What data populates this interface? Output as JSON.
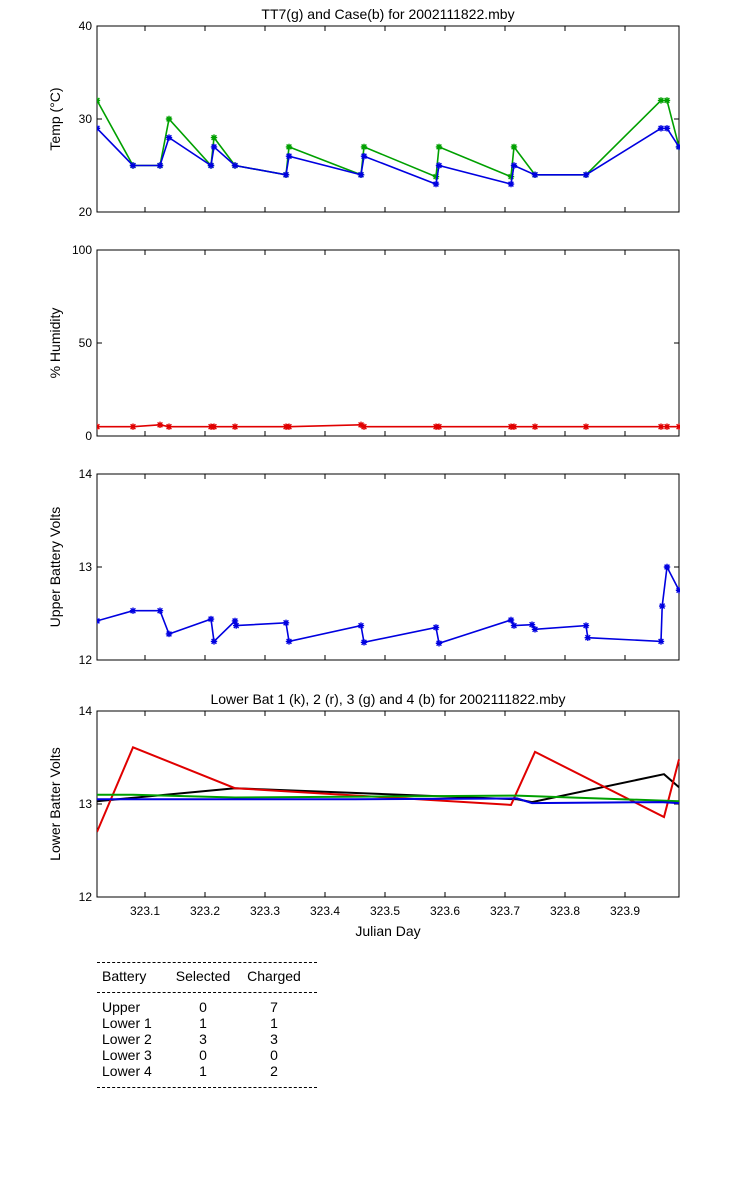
{
  "chart_data": [
    {
      "type": "line",
      "title": "TT7(g) and Case(b) for 2002111822.mby",
      "xlabel": "",
      "ylabel": "Temp  (°C)",
      "xlim": [
        323.02,
        323.99
      ],
      "ylim": [
        20,
        40
      ],
      "yticks": [
        20,
        30,
        40
      ],
      "grid": false,
      "series": [
        {
          "color": "#00a000",
          "x": [
            323.02,
            323.08,
            323.125,
            323.14,
            323.21,
            323.215,
            323.25,
            323.335,
            323.34,
            323.46,
            323.465,
            323.585,
            323.59,
            323.71,
            323.715,
            323.75,
            323.835,
            323.96,
            323.97,
            323.99
          ],
          "y": [
            32,
            25,
            25,
            30,
            25,
            28,
            25,
            24,
            27,
            24,
            27,
            23.8,
            27,
            23.8,
            27,
            24,
            24,
            32,
            32,
            27
          ]
        },
        {
          "color": "#0000e0",
          "x": [
            323.02,
            323.08,
            323.125,
            323.14,
            323.21,
            323.215,
            323.25,
            323.335,
            323.34,
            323.46,
            323.465,
            323.585,
            323.59,
            323.71,
            323.715,
            323.75,
            323.835,
            323.96,
            323.97,
            323.99
          ],
          "y": [
            29,
            25,
            25,
            28,
            25,
            27,
            25,
            24,
            26,
            24,
            26,
            23,
            25,
            23,
            25,
            24,
            24,
            29,
            29,
            27
          ]
        }
      ]
    },
    {
      "type": "line",
      "title": "",
      "xlabel": "",
      "ylabel": "% Humidity",
      "xlim": [
        323.02,
        323.99
      ],
      "ylim": [
        0,
        100
      ],
      "yticks": [
        0,
        50,
        100
      ],
      "grid": false,
      "series": [
        {
          "color": "#e00000",
          "x": [
            323.02,
            323.08,
            323.125,
            323.14,
            323.21,
            323.215,
            323.25,
            323.335,
            323.34,
            323.46,
            323.465,
            323.585,
            323.59,
            323.71,
            323.715,
            323.75,
            323.835,
            323.96,
            323.97,
            323.99
          ],
          "y": [
            5,
            5,
            6,
            5,
            5,
            5,
            5,
            5,
            5,
            6,
            5,
            5,
            5,
            5,
            5,
            5,
            5,
            5,
            5,
            5
          ]
        }
      ]
    },
    {
      "type": "line",
      "title": "",
      "xlabel": "",
      "ylabel": "Upper Battery Volts",
      "xlim": [
        323.02,
        323.99
      ],
      "ylim": [
        12,
        14
      ],
      "yticks": [
        12,
        13,
        14
      ],
      "grid": false,
      "series": [
        {
          "color": "#0000e0",
          "x": [
            323.02,
            323.08,
            323.125,
            323.14,
            323.21,
            323.215,
            323.25,
            323.252,
            323.335,
            323.34,
            323.46,
            323.465,
            323.585,
            323.59,
            323.71,
            323.715,
            323.745,
            323.75,
            323.835,
            323.838,
            323.96,
            323.962,
            323.97,
            323.99
          ],
          "y": [
            12.42,
            12.53,
            12.53,
            12.28,
            12.44,
            12.2,
            12.42,
            12.37,
            12.4,
            12.2,
            12.37,
            12.19,
            12.35,
            12.18,
            12.43,
            12.37,
            12.38,
            12.33,
            12.37,
            12.24,
            12.2,
            12.58,
            13.0,
            12.75
          ]
        }
      ]
    },
    {
      "type": "line",
      "title": "Lower Bat 1 (k), 2 (r), 3 (g) and 4 (b) for 2002111822.mby",
      "xlabel": "Julian Day",
      "ylabel": "Lower Batter Volts",
      "xlim": [
        323.02,
        323.99
      ],
      "ylim": [
        12,
        14
      ],
      "yticks": [
        12,
        13,
        14
      ],
      "xticks": [
        323.1,
        323.2,
        323.3,
        323.4,
        323.5,
        323.6,
        323.7,
        323.8,
        323.9
      ],
      "xticklabels": [
        "323.1",
        "323.2",
        "323.3",
        "323.4",
        "323.5",
        "323.6",
        "323.7",
        "323.8",
        "323.9"
      ],
      "grid": false,
      "series": [
        {
          "color": "#000000",
          "x": [
            323.02,
            323.25,
            323.72,
            323.745,
            323.965,
            323.99
          ],
          "y": [
            13.03,
            13.17,
            13.05,
            13.02,
            13.32,
            13.18
          ]
        },
        {
          "color": "#e00000",
          "x": [
            323.02,
            323.08,
            323.25,
            323.71,
            323.75,
            323.965,
            323.99
          ],
          "y": [
            12.7,
            13.61,
            13.17,
            12.99,
            13.56,
            12.86,
            13.48
          ]
        },
        {
          "color": "#00a000",
          "x": [
            323.02,
            323.08,
            323.25,
            323.72,
            323.99
          ],
          "y": [
            13.1,
            13.1,
            13.07,
            13.09,
            13.03
          ]
        },
        {
          "color": "#0000e0",
          "x": [
            323.02,
            323.45,
            323.72,
            323.745,
            323.96,
            323.99
          ],
          "y": [
            13.05,
            13.05,
            13.06,
            13.01,
            13.02,
            13.01
          ]
        }
      ]
    }
  ],
  "battery_table": {
    "headers": [
      "Battery",
      "Selected",
      "Charged"
    ],
    "rows": [
      [
        "Upper",
        "0",
        "7"
      ],
      [
        "Lower 1",
        "1",
        "1"
      ],
      [
        "Lower 2",
        "3",
        "3"
      ],
      [
        "Lower 3",
        "0",
        "0"
      ],
      [
        "Lower 4",
        "1",
        "2"
      ]
    ]
  }
}
